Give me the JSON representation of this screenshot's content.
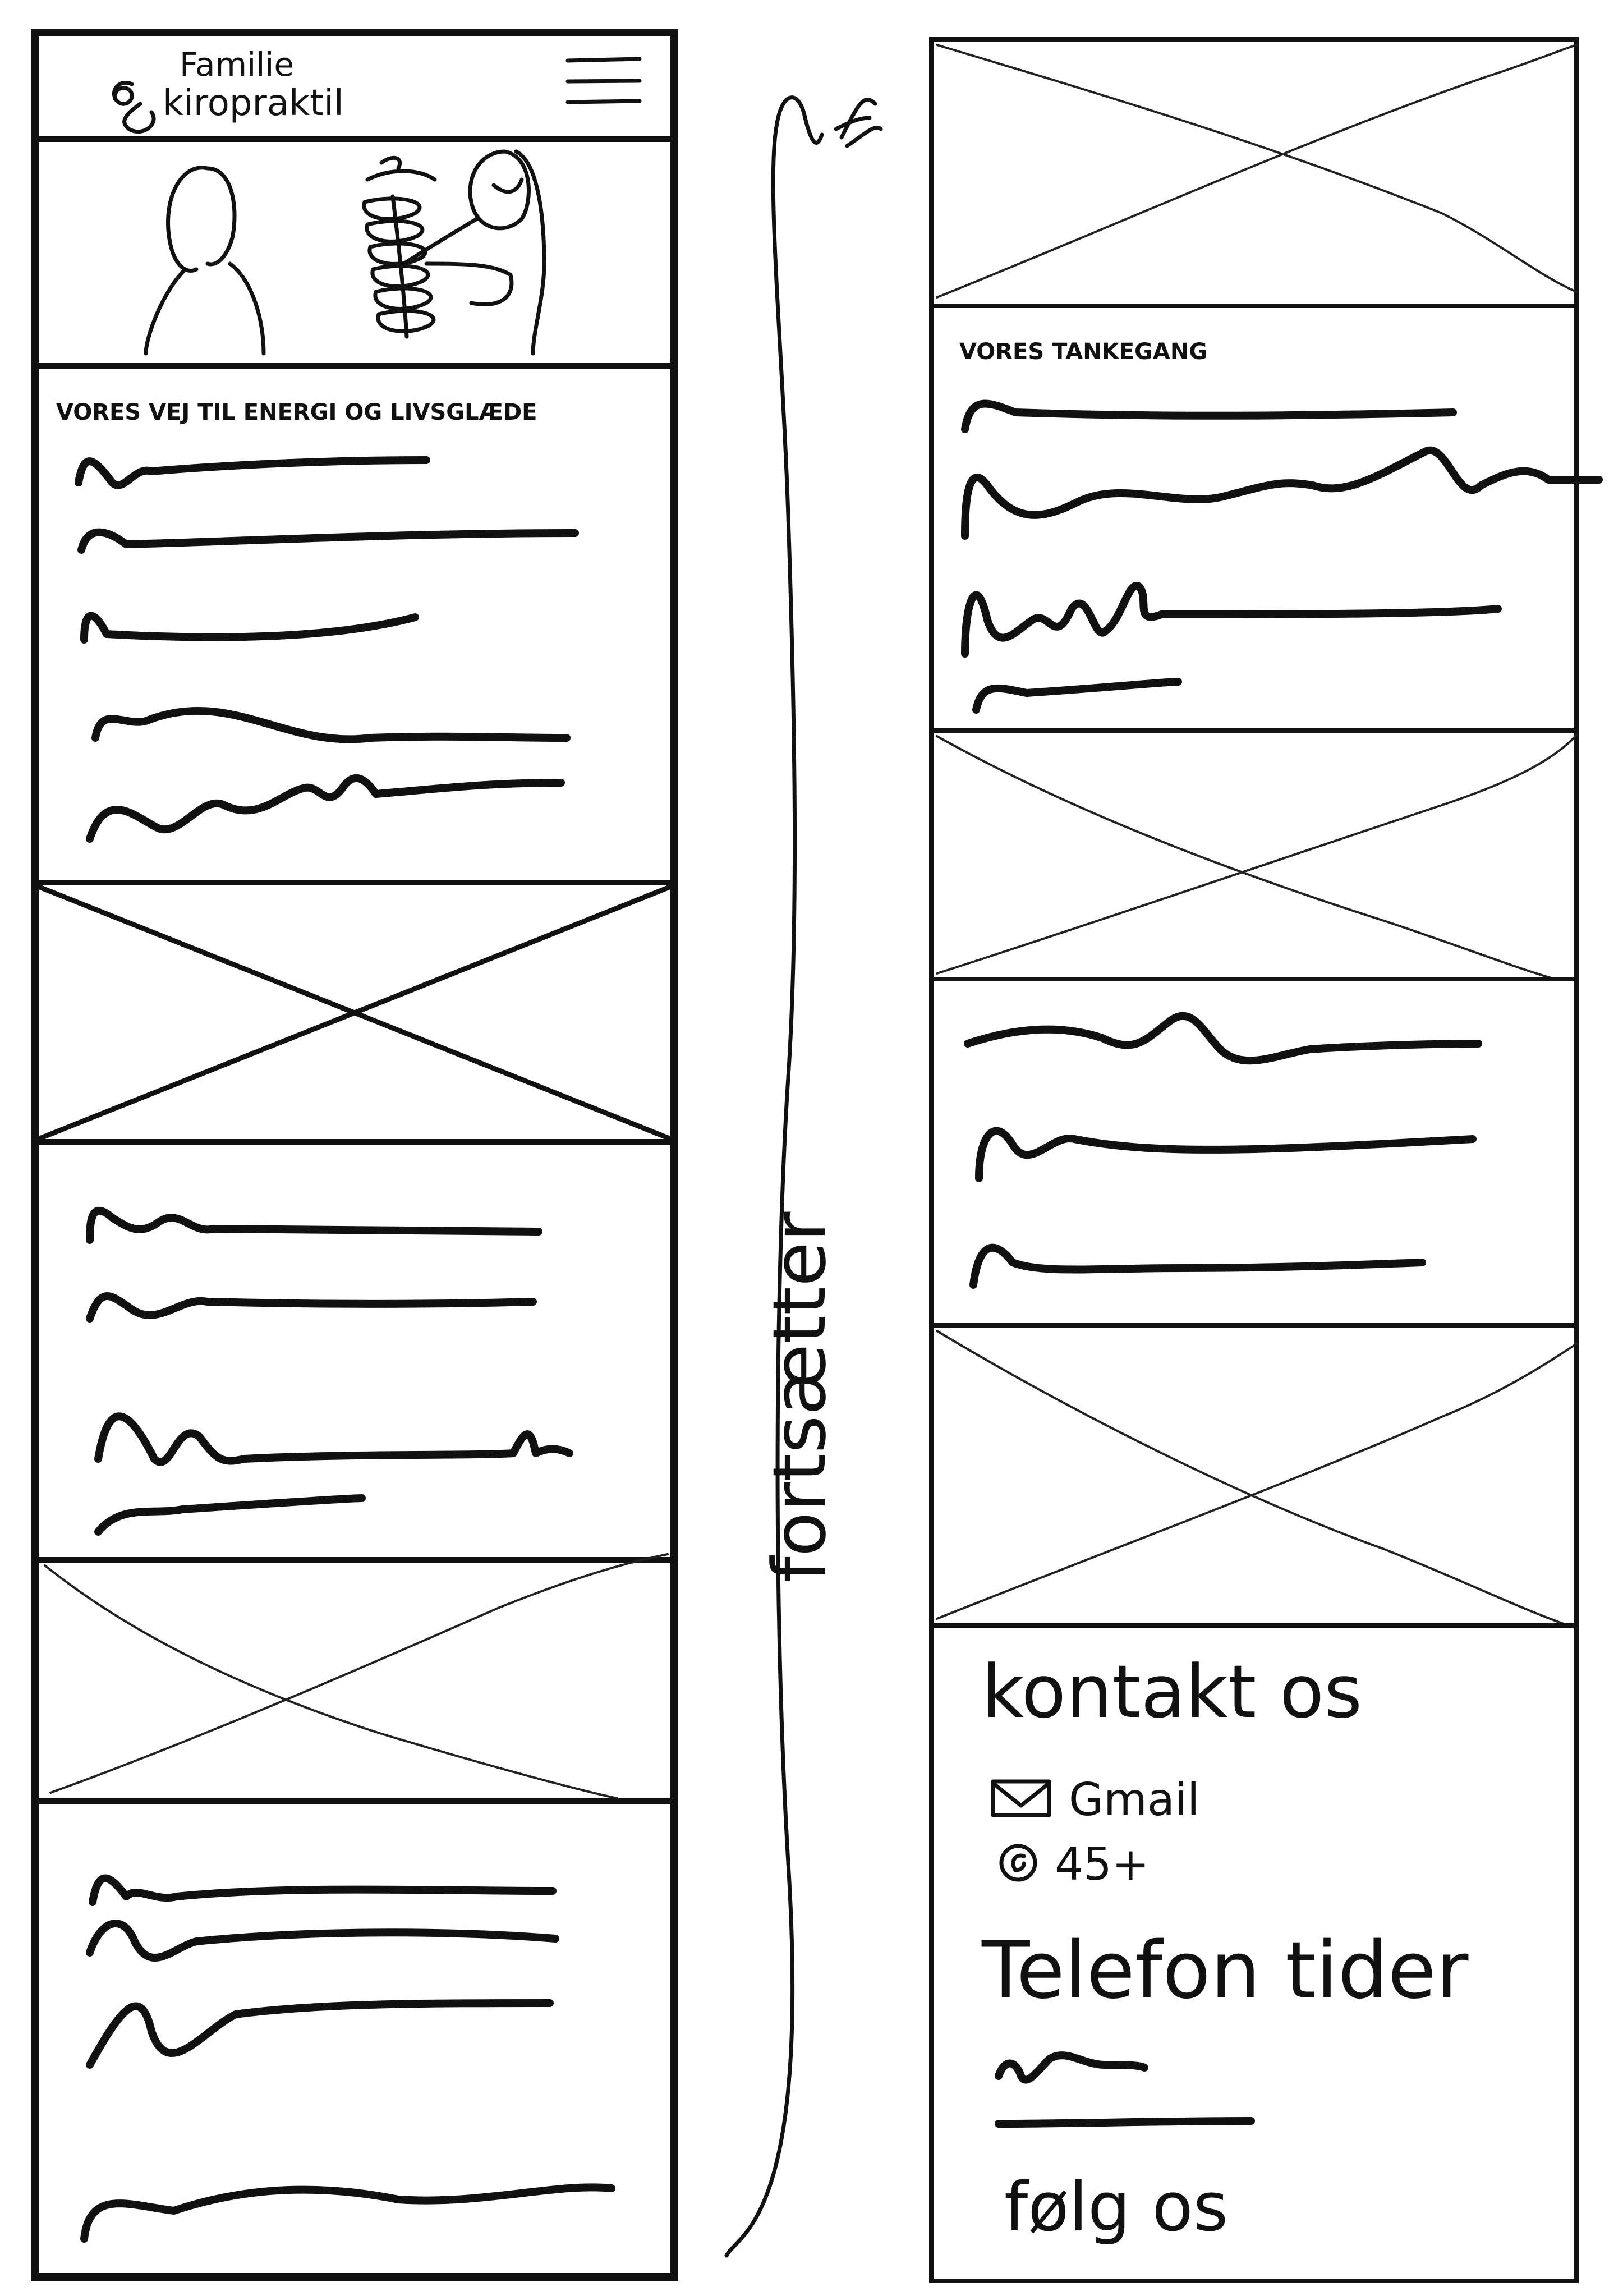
{
  "logo": {
    "line1": "Familie",
    "line2": "kiropraktil"
  },
  "left_phone": {
    "section1_heading": "VORES VEJ TIL ENERGI OG LIVSGLÆDE"
  },
  "connector": {
    "label": "fortsætter"
  },
  "right_phone": {
    "section1_heading": "VORES TANKEGANG",
    "contact": {
      "title": "kontakt os",
      "email_label": "Gmail",
      "phone_label": "45+",
      "hours_title": "Telefon tider",
      "follow_title": "følg os"
    }
  },
  "icons": [
    "hamburger-menu-icon",
    "logo-spiral-icon",
    "mail-icon",
    "phone-icon",
    "arrow-head-icon"
  ]
}
